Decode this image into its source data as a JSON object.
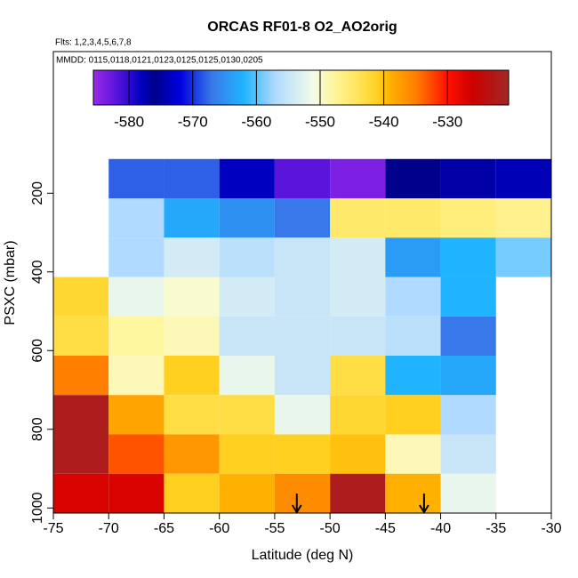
{
  "chart_data": {
    "type": "heatmap",
    "title": "ORCAS RF01-8 O2_AO2orig",
    "subtitle": "Flts: 1,2,3,4,5,6,7,8",
    "annotation": "MMDD: 0115,0118,0121,0123,0125,0125,0130,0205",
    "xlabel": "Latitude (deg N)",
    "ylabel": "PSXC (mbar)",
    "xlim": [
      -75,
      -30
    ],
    "xticks": [
      -75,
      -70,
      -65,
      -60,
      -55,
      -50,
      -45,
      -40,
      -35,
      -30
    ],
    "ylim": [
      1013,
      -160
    ],
    "yticks": [
      200,
      400,
      600,
      800,
      1000
    ],
    "x_edges": [
      -75,
      -70,
      -65,
      -60,
      -55,
      -50,
      -45,
      -40,
      -35,
      -30
    ],
    "y_edges": [
      113,
      213,
      313,
      413,
      513,
      613,
      713,
      813,
      913,
      1013
    ],
    "values": [
      [
        null,
        -568,
        -568,
        -578,
        -582,
        -584,
        -576,
        -577,
        -574
      ],
      [
        null,
        -557,
        -563,
        -565,
        -567,
        -545,
        -545,
        -546,
        -547
      ],
      [
        null,
        -557,
        -554,
        -556,
        -555,
        -554,
        -564,
        -562,
        -559
      ],
      [
        -542,
        -552,
        -550,
        -554,
        -555,
        -554,
        -557,
        -562,
        null
      ],
      [
        -543,
        -548,
        -549,
        -555,
        -555,
        -555,
        -556,
        -567,
        null
      ],
      [
        -535,
        -549,
        -541,
        -552,
        -555,
        -543,
        -562,
        -563,
        null
      ],
      [
        -522,
        -538,
        -543,
        -543,
        -552,
        -542,
        -541,
        -557,
        null
      ],
      [
        -522,
        -533,
        -537,
        -541,
        -541,
        -540,
        -549,
        -555,
        null
      ],
      [
        -527,
        -527,
        -541,
        -539,
        -536,
        -522,
        -539,
        -552,
        null
      ]
    ],
    "clim": [
      -585.6,
      -520.4
    ],
    "cticks": [
      -580,
      -570,
      -560,
      -550,
      -540,
      -530
    ],
    "colorscale": [
      {
        "value": -585.6,
        "color": "#9a2ae8"
      },
      {
        "value": -582,
        "color": "#5a14dc"
      },
      {
        "value": -578,
        "color": "#0000c0"
      },
      {
        "value": -576,
        "color": "#00008c"
      },
      {
        "value": -572,
        "color": "#0000e0"
      },
      {
        "value": -567,
        "color": "#3878e8"
      },
      {
        "value": -562,
        "color": "#20b4ff"
      },
      {
        "value": -557,
        "color": "#b0daff"
      },
      {
        "value": -551,
        "color": "#f4fce8"
      },
      {
        "value": -548,
        "color": "#fff6a0"
      },
      {
        "value": -544,
        "color": "#ffe458"
      },
      {
        "value": -541,
        "color": "#ffd020"
      },
      {
        "value": -539,
        "color": "#ffb000"
      },
      {
        "value": -535,
        "color": "#ff8000"
      },
      {
        "value": -530,
        "color": "#ff1000"
      },
      {
        "value": -526,
        "color": "#cc0000"
      },
      {
        "value": -520.4,
        "color": "#a02828"
      }
    ],
    "arrows_x": [
      -53,
      -41.5
    ]
  }
}
